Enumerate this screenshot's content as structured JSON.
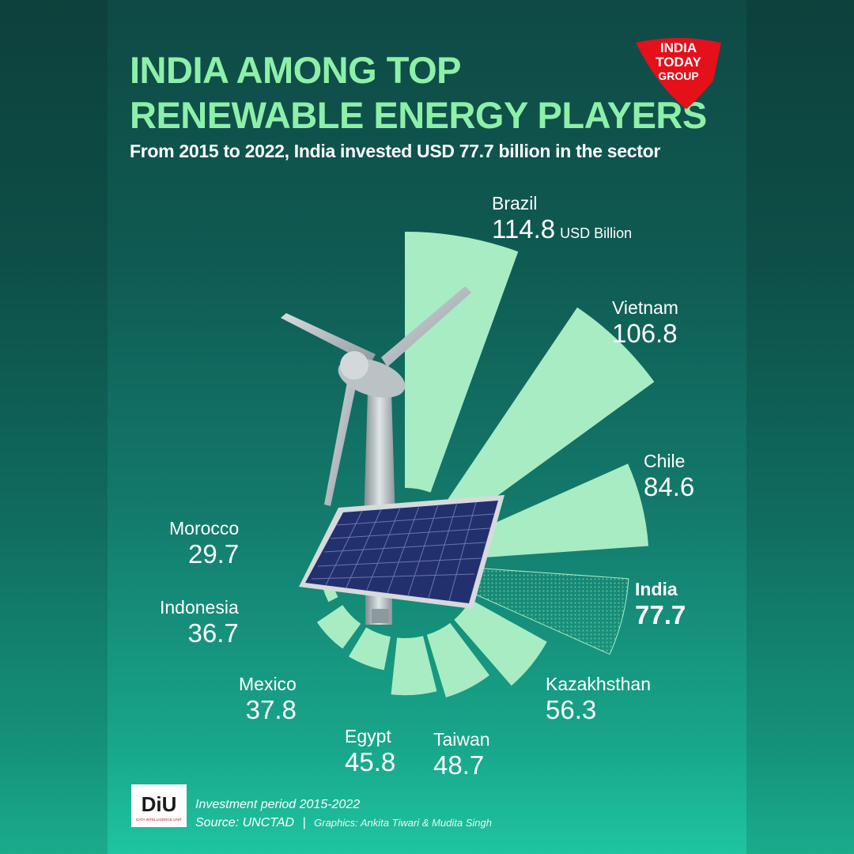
{
  "title_line1": "INDIA AMONG TOP",
  "title_line2": "RENEWABLE ENERGY PLAYERS",
  "subtitle": "From 2015 to 2022, India invested USD 77.7 billion in the sector",
  "brand": {
    "line1": "INDIA",
    "line2": "TODAY",
    "line3": "GROUP",
    "color": "#e4101a"
  },
  "unit": "USD Billion",
  "highlight": "India",
  "colors": {
    "bar": "#a8ecc4",
    "title": "#8ef0a8",
    "panel": "#23306e"
  },
  "chart_data": {
    "type": "bar",
    "layout": "radial",
    "title": "INDIA AMONG TOP RENEWABLE ENERGY PLAYERS",
    "categories": [
      "Brazil",
      "Vietnam",
      "Chile",
      "India",
      "Kazakhsthan",
      "Taiwan",
      "Egypt",
      "Mexico",
      "Indonesia",
      "Morocco"
    ],
    "values": [
      114.8,
      106.8,
      84.6,
      77.7,
      56.3,
      48.7,
      45.8,
      37.8,
      36.7,
      29.7
    ],
    "value_labels": [
      "114.8",
      "106.8",
      "84.6",
      "77.7",
      "56.3",
      "48.7",
      "45.8",
      "37.8",
      "36.7",
      "29.7"
    ]
  },
  "footer": {
    "logo_text": "DiU",
    "logo_caption": "DATA INTELLIGENCE UNIT",
    "period": "Investment period 2015-2022",
    "source": "Source: UNCTAD",
    "separator": "|",
    "credit": "Graphics: Ankita Tiwari & Mudita Singh"
  }
}
